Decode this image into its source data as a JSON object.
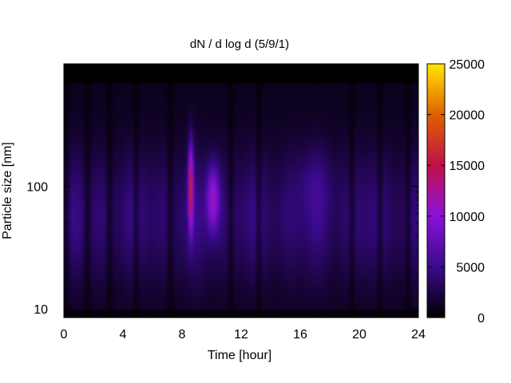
{
  "chart_data": {
    "type": "heatmap",
    "title": "dN / d log d (5/9/1)",
    "xlabel": "Time [hour]",
    "ylabel": "Particle size [nm]",
    "xlim": [
      0,
      24
    ],
    "x_ticks": [
      0,
      4,
      8,
      12,
      16,
      20,
      24
    ],
    "x_tick_labels": [
      "0",
      "4",
      "8",
      "12",
      "16",
      "20",
      "24"
    ],
    "y_scale": "log",
    "ylim": [
      8.5,
      1000
    ],
    "y_ticks": [
      10,
      100
    ],
    "y_tick_labels": [
      "10",
      "100"
    ],
    "colorbar": {
      "min": 0,
      "max": 25000,
      "ticks": [
        0,
        5000,
        10000,
        15000,
        20000,
        25000
      ],
      "tick_labels": [
        "0",
        "5000",
        "10000",
        "15000",
        "20000",
        "25000"
      ],
      "colormap": "black-purple-red-yellow",
      "colors": [
        "#000000",
        "#3a0a8c",
        "#8a12d9",
        "#c01048",
        "#e06000",
        "#ffe800"
      ]
    },
    "events": [
      {
        "time_hour": 8.6,
        "size_nm": 100,
        "value": 17000
      },
      {
        "time_hour": 10.1,
        "size_nm": 80,
        "value": 13000
      },
      {
        "time_hour": 17.0,
        "size_nm": 110,
        "value": 6500
      }
    ],
    "background_range": [
      1000,
      5000
    ],
    "grid": false
  }
}
